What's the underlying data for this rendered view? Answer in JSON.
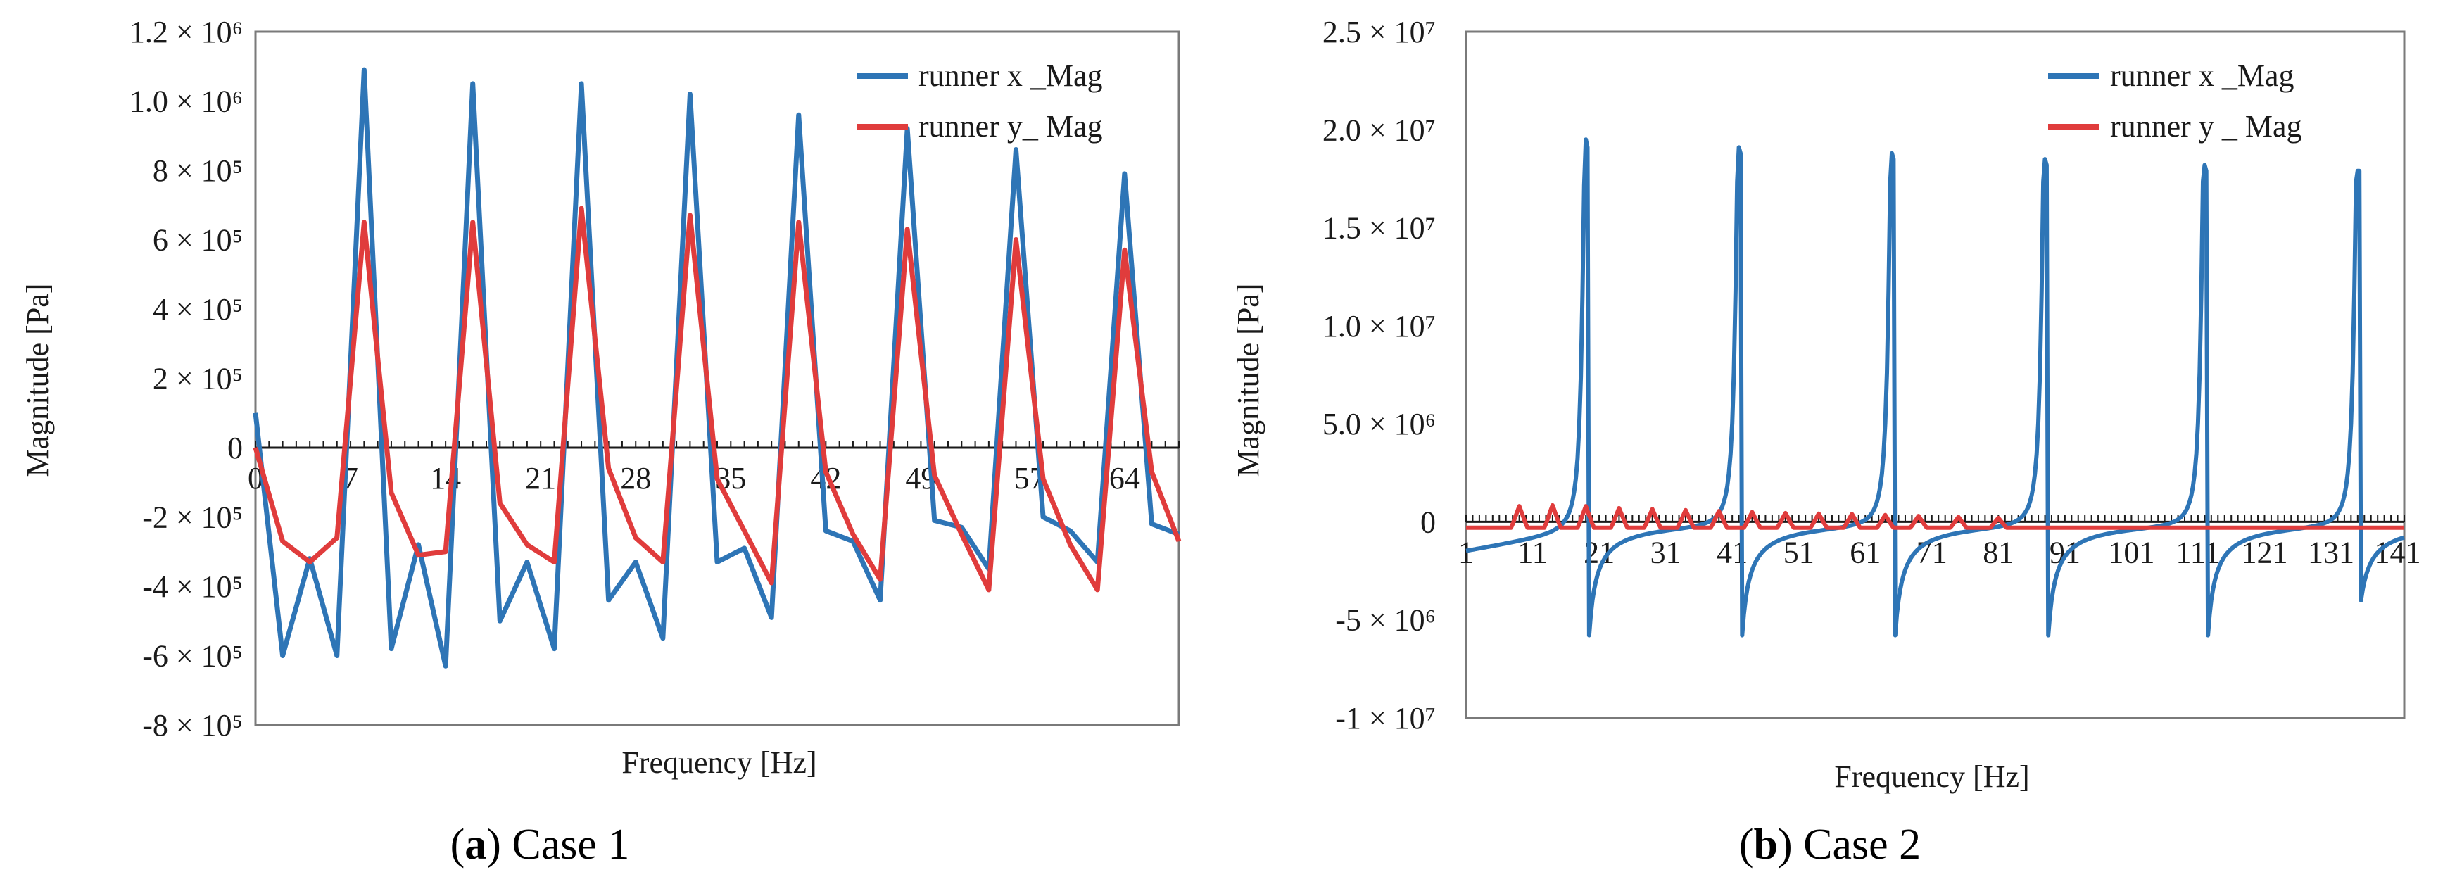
{
  "chart_data": [
    {
      "type": "line",
      "panel": "a",
      "xlabel": "Frequency [Hz]",
      "ylabel": "Magnitude  [Pa]",
      "ylim": [
        -800000,
        1200000
      ],
      "xlim": [
        0,
        68
      ],
      "caption": {
        "label": "a",
        "open": "(",
        "close": ") Case 1"
      },
      "x_tick_labels": [
        "0",
        "7",
        "14",
        "21",
        "28",
        "35",
        "42",
        "49",
        "57",
        "64"
      ],
      "x_tick_values": [
        0,
        7,
        14,
        21,
        28,
        35,
        42,
        49,
        57,
        64
      ],
      "y_ticks": [
        {
          "value": 1200000,
          "label": "1.2 × 10⁶"
        },
        {
          "value": 1000000,
          "label": "1.0 × 10⁶"
        },
        {
          "value": 800000,
          "label": "8 × 10⁵"
        },
        {
          "value": 600000,
          "label": "6 × 10⁵"
        },
        {
          "value": 400000,
          "label": "4 × 10⁵"
        },
        {
          "value": 200000,
          "label": "2 × 10⁵"
        },
        {
          "value": 0,
          "label": "0"
        },
        {
          "value": -200000,
          "label": "-2 × 10⁵"
        },
        {
          "value": -400000,
          "label": "-4 × 10⁵"
        },
        {
          "value": -600000,
          "label": "-6 × 10⁵"
        },
        {
          "value": -800000,
          "label": "-8 × 10⁵"
        }
      ],
      "series": [
        {
          "name": "runner x _Mag",
          "color": "#2E75B6",
          "x": [
            0,
            2,
            4,
            6,
            8,
            10,
            12,
            14,
            16,
            18,
            20,
            22,
            24,
            26,
            28,
            30,
            32,
            34,
            36,
            38,
            40,
            42,
            44,
            46,
            48,
            50,
            52,
            54,
            56,
            58,
            60,
            62,
            64,
            66,
            68
          ],
          "values": [
            100000,
            -600000,
            -320000,
            -600000,
            1090000,
            -580000,
            -280000,
            -630000,
            1050000,
            -500000,
            -330000,
            -580000,
            1050000,
            -440000,
            -330000,
            -550000,
            1020000,
            -330000,
            -290000,
            -490000,
            960000,
            -240000,
            -270000,
            -440000,
            920000,
            -210000,
            -230000,
            -350000,
            860000,
            -200000,
            -240000,
            -330000,
            790000,
            -220000,
            -250000
          ]
        },
        {
          "name": "runner y_ Mag",
          "color": "#E03C3C",
          "x": [
            0,
            2,
            4,
            6,
            8,
            10,
            12,
            14,
            16,
            18,
            20,
            22,
            24,
            26,
            28,
            30,
            32,
            34,
            36,
            38,
            40,
            42,
            44,
            46,
            48,
            50,
            52,
            54,
            56,
            58,
            60,
            62,
            64,
            66,
            68
          ],
          "values": [
            0,
            -270000,
            -330000,
            -260000,
            650000,
            -130000,
            -310000,
            -300000,
            650000,
            -160000,
            -280000,
            -330000,
            690000,
            -60000,
            -260000,
            -330000,
            670000,
            -90000,
            -240000,
            -390000,
            650000,
            -70000,
            -250000,
            -380000,
            630000,
            -80000,
            -250000,
            -410000,
            600000,
            -90000,
            -280000,
            -410000,
            570000,
            -70000,
            -270000
          ]
        }
      ]
    },
    {
      "type": "line",
      "panel": "b",
      "xlabel": "Frequency [Hz]",
      "ylabel": "Magnitude  [Pa]",
      "ylim": [
        -10000000,
        25000000
      ],
      "xlim": [
        1,
        142
      ],
      "caption": {
        "label": "b",
        "open": "(",
        "close": ") Case 2"
      },
      "x_tick_labels": [
        "1",
        "11",
        "21",
        "31",
        "41",
        "51",
        "61",
        "71",
        "81",
        "91",
        "101",
        "111",
        "121",
        "131",
        "141"
      ],
      "x_tick_values": [
        1,
        11,
        21,
        31,
        41,
        51,
        61,
        71,
        81,
        91,
        101,
        111,
        121,
        131,
        141
      ],
      "y_ticks": [
        {
          "value": 25000000,
          "label": "2.5 × 10⁷"
        },
        {
          "value": 20000000,
          "label": "2.0 × 10⁷"
        },
        {
          "value": 15000000,
          "label": "1.5 × 10⁷"
        },
        {
          "value": 10000000,
          "label": "1.0 × 10⁷"
        },
        {
          "value": 5000000,
          "label": "5.0 × 10⁶"
        },
        {
          "value": 0,
          "label": "0"
        },
        {
          "value": -5000000,
          "label": "-5 × 10⁶"
        },
        {
          "value": -10000000,
          "label": "-1 × 10⁷"
        }
      ],
      "series": [
        {
          "name": "runner x _Mag",
          "color": "#2E75B6",
          "peaks": [
            19,
            42,
            65,
            88,
            112,
            135
          ],
          "peak_values": [
            19500000,
            19100000,
            18800000,
            18500000,
            18200000,
            17900000
          ],
          "trough_value": -5800000,
          "baseline_start": -1500000
        },
        {
          "name": "runner y _ Mag",
          "color": "#E03C3C",
          "bumps": [
            9,
            14,
            19,
            24,
            29,
            34,
            39,
            44,
            49,
            54,
            59,
            64,
            69,
            75,
            81
          ],
          "bump_values": [
            800000,
            850000,
            800000,
            700000,
            650000,
            600000,
            550000,
            500000,
            450000,
            420000,
            400000,
            350000,
            300000,
            250000,
            200000
          ],
          "baseline": -300000
        }
      ]
    }
  ]
}
